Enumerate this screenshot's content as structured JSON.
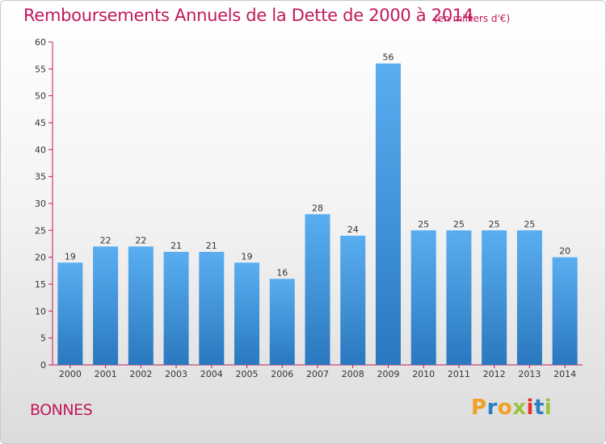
{
  "header": {
    "title": "Remboursements Annuels de la Dette de 2000 à 2014",
    "subtitle": "(en milliers d'€)"
  },
  "footer": {
    "city": "BONNES",
    "brand_letters": [
      "P",
      "r",
      "o",
      "x",
      "i",
      "t",
      "i"
    ],
    "brand_colors": [
      "#f0a023",
      "#2a7fc4",
      "#f0a023",
      "#9ac33c",
      "#e0342b",
      "#2a7fc4",
      "#9ac33c"
    ]
  },
  "chart_data": {
    "type": "bar",
    "title": "Remboursements Annuels de la Dette de 2000 à 2014",
    "subtitle": "(en milliers d'€)",
    "categories": [
      "2000",
      "2001",
      "2002",
      "2003",
      "2004",
      "2005",
      "2006",
      "2007",
      "2008",
      "2009",
      "2010",
      "2011",
      "2012",
      "2013",
      "2014"
    ],
    "values": [
      19,
      22,
      22,
      21,
      21,
      19,
      16,
      28,
      24,
      56,
      25,
      25,
      25,
      25,
      20
    ],
    "ylim": [
      0,
      60
    ],
    "yticks": [
      0,
      5,
      10,
      15,
      20,
      25,
      30,
      35,
      40,
      45,
      50,
      55,
      60
    ],
    "xlabel": "",
    "ylabel": "",
    "grid": false,
    "bar_color": "#4a9ee0",
    "axis_color": "#c2185b"
  }
}
